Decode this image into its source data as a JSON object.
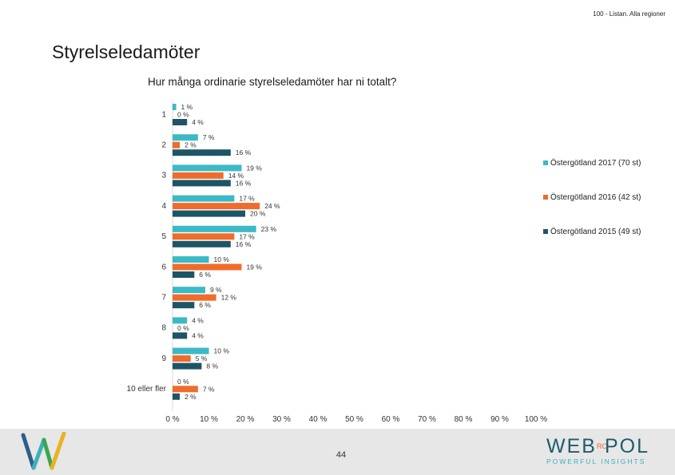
{
  "header": {
    "note": "100 - Listan. Alla regioner"
  },
  "slide": {
    "title": "Styrelseledamöter",
    "page_number": "44"
  },
  "branding": {
    "logo_main": "WEB",
    "logo_ro": "RO",
    "logo_end": "POL",
    "tagline": "POWERFUL INSIGHTS"
  },
  "colors": {
    "teal": "#3cb9c6",
    "orange": "#ef6c2b",
    "navy": "#1d5566",
    "footer_bg": "#e7e7e7"
  },
  "chart_data": {
    "type": "bar",
    "orientation": "horizontal",
    "title": "Hur många ordinarie styrelseledamöter har ni totalt?",
    "categories": [
      "1",
      "2",
      "3",
      "4",
      "5",
      "6",
      "7",
      "8",
      "9",
      "10 eller fler"
    ],
    "series": [
      {
        "name": "Östergötland 2017 (70 st)",
        "color": "#3cb9c6",
        "values": [
          1,
          7,
          19,
          17,
          23,
          10,
          9,
          4,
          10,
          0
        ]
      },
      {
        "name": "Östergötland 2016 (42 st)",
        "color": "#ef6c2b",
        "values": [
          0,
          2,
          14,
          24,
          17,
          19,
          12,
          0,
          5,
          7
        ]
      },
      {
        "name": "Östergötland 2015 (49 st)",
        "color": "#1d5566",
        "values": [
          4,
          16,
          16,
          20,
          16,
          6,
          6,
          4,
          8,
          2
        ]
      }
    ],
    "value_suffix": " %",
    "xlim": [
      0,
      100
    ],
    "xticks": [
      "0 %",
      "10 %",
      "20 %",
      "30 %",
      "40 %",
      "50 %",
      "60 %",
      "70 %",
      "80 %",
      "90 %",
      "100 %"
    ],
    "grid": false,
    "legend_position": "right"
  }
}
